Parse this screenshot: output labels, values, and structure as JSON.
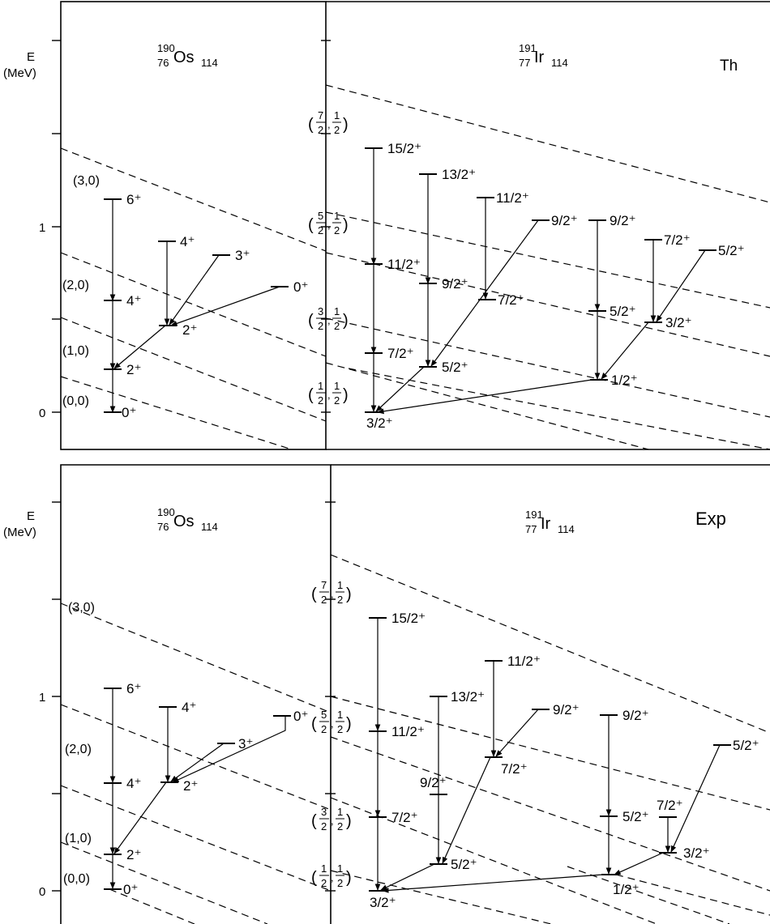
{
  "colors": {
    "ink": "#000000",
    "background": "#ffffff"
  },
  "panels": [
    {
      "id": "th",
      "axis_label_1": "E",
      "axis_label_2": "(MeV)",
      "tick_label_0": "0",
      "tick_label_1": "1",
      "left_title": {
        "mass": "190",
        "z": "76",
        "sym": "Os",
        "n": "114"
      },
      "right_title": {
        "mass": "191",
        "z": "77",
        "sym": "Ir",
        "n": "114"
      },
      "kind": "Th",
      "os_bands": [
        "(3,0)",
        "(2,0)",
        "(1,0)",
        "(0,0)"
      ],
      "os_levels": [
        "6⁺",
        "4⁺",
        "2⁺",
        "0⁺",
        "4⁺",
        "3⁺",
        "2⁺",
        "0⁺"
      ],
      "ir_bands": [
        {
          "n": "7",
          "d": "2",
          "n2": "1",
          "d2": "2"
        },
        {
          "n": "5",
          "d": "2",
          "n2": "1",
          "d2": "2"
        },
        {
          "n": "3",
          "d": "2",
          "n2": "1",
          "d2": "2"
        },
        {
          "n": "1",
          "d": "2",
          "n2": "1",
          "d2": "2"
        }
      ],
      "ir_levels": [
        "15/2⁺",
        "11/2⁺",
        "7/2⁺",
        "3/2⁺",
        "13/2⁺",
        "9/2⁺",
        "5/2⁺",
        "11/2⁺",
        "7/2⁺",
        "9/2⁺",
        "9/2⁺",
        "5/2⁺",
        "1/2⁺",
        "7/2⁺",
        "3/2⁺",
        "5/2⁺"
      ]
    },
    {
      "id": "exp",
      "axis_label_1": "E",
      "axis_label_2": "(MeV)",
      "tick_label_0": "0",
      "tick_label_1": "1",
      "left_title": {
        "mass": "190",
        "z": "76",
        "sym": "Os",
        "n": "114"
      },
      "right_title": {
        "mass": "191",
        "z": "77",
        "sym": "Ir",
        "n": "114"
      },
      "kind": "Exp",
      "os_bands": [
        "(3,0)",
        "(2,0)",
        "(1,0)",
        "(0,0)"
      ],
      "os_levels": [
        "6⁺",
        "4⁺",
        "2⁺",
        "0⁺",
        "4⁺",
        "3⁺",
        "2⁺",
        "0⁺"
      ],
      "ir_bands": [
        {
          "n": "7",
          "d": "2",
          "n2": "1",
          "d2": "2"
        },
        {
          "n": "5",
          "d": "2",
          "n2": "1",
          "d2": "2"
        },
        {
          "n": "3",
          "d": "2",
          "n2": "1",
          "d2": "2"
        },
        {
          "n": "1",
          "d": "2",
          "n2": "1",
          "d2": "2"
        }
      ],
      "ir_levels": [
        "15/2⁺",
        "11/2⁺",
        "7/2⁺",
        "3/2⁺",
        "13/2⁺",
        "9/2⁺",
        "5/2⁺",
        "11/2⁺",
        "7/2⁺",
        "9/2⁺",
        "9/2⁺",
        "5/2⁺",
        "1/2⁺",
        "7/2⁺",
        "3/2⁺",
        "5/2⁺"
      ]
    }
  ]
}
